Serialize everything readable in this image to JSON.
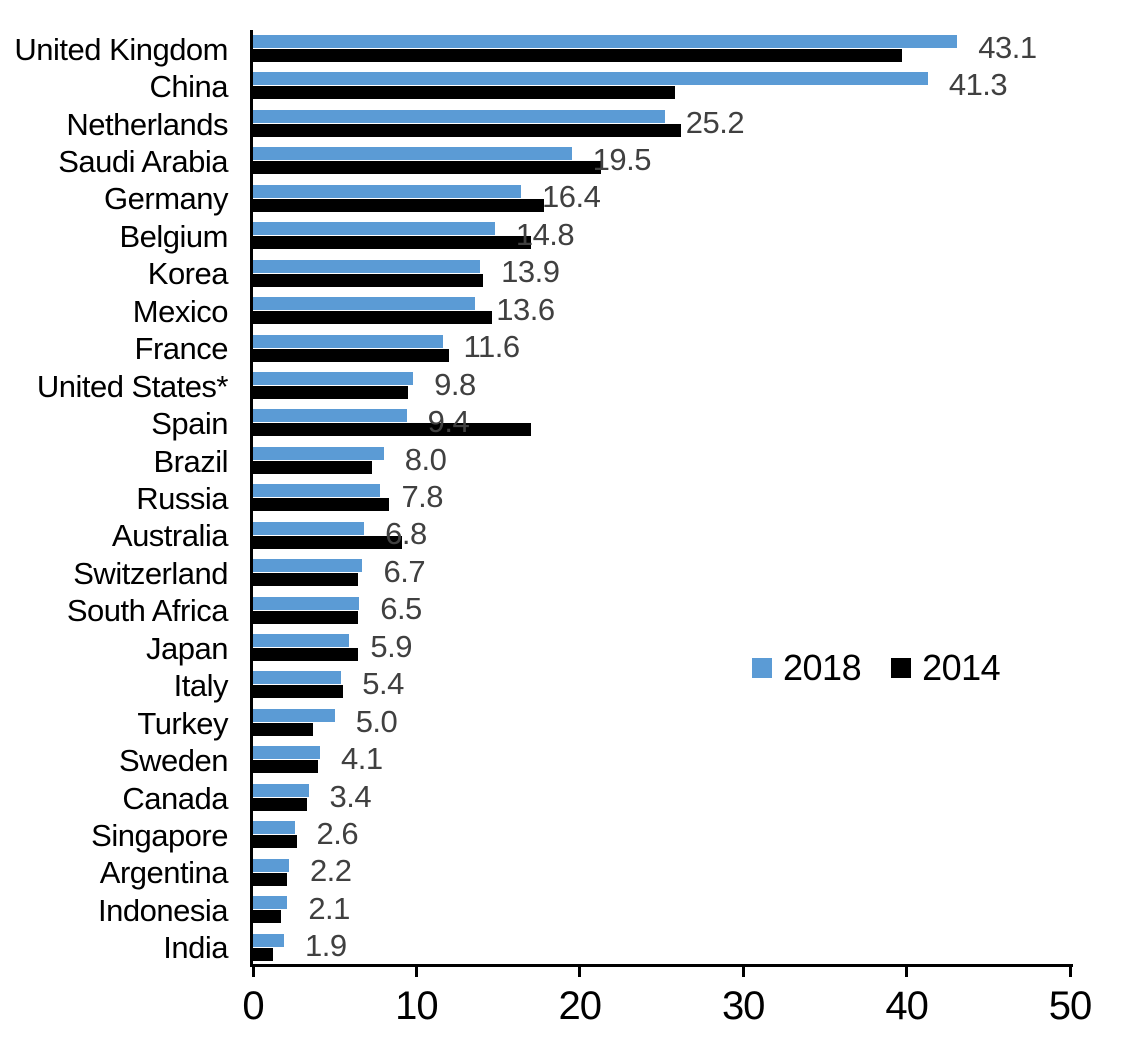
{
  "chart_data": {
    "type": "bar",
    "orientation": "horizontal",
    "title": "",
    "xlabel": "",
    "ylabel": "",
    "xlim": [
      0,
      50
    ],
    "x_ticks": [
      "0",
      "10",
      "20",
      "30",
      "40",
      "50"
    ],
    "grid": false,
    "categories": [
      "United Kingdom",
      "China",
      "Netherlands",
      "Saudi Arabia",
      "Germany",
      "Belgium",
      "Korea",
      "Mexico",
      "France",
      "United States*",
      "Spain",
      "Brazil",
      "Russia",
      "Australia",
      "Switzerland",
      "South Africa",
      "Japan",
      "Italy",
      "Turkey",
      "Sweden",
      "Canada",
      "Singapore",
      "Argentina",
      "Indonesia",
      "India"
    ],
    "series": [
      {
        "name": "2018",
        "color": "#5B9BD5",
        "values": [
          43.1,
          41.3,
          25.2,
          19.5,
          16.4,
          14.8,
          13.9,
          13.6,
          11.6,
          9.8,
          9.4,
          8.0,
          7.8,
          6.8,
          6.7,
          6.5,
          5.9,
          5.4,
          5.0,
          4.1,
          3.4,
          2.6,
          2.2,
          2.1,
          1.9
        ],
        "data_labels": [
          "43.1",
          "41.3",
          "25.2",
          "19.5",
          "16.4",
          "14.8",
          "13.9",
          "13.6",
          "11.6",
          "9.8",
          "9.4",
          "8.0",
          "7.8",
          "6.8",
          "6.7",
          "6.5",
          "5.9",
          "5.4",
          "5.0",
          "4.1",
          "3.4",
          "2.6",
          "2.2",
          "2.1",
          "1.9"
        ]
      },
      {
        "name": "2014",
        "color": "#000000",
        "values": [
          39.7,
          25.8,
          26.2,
          21.3,
          17.8,
          17.0,
          14.1,
          14.6,
          12.0,
          9.5,
          17.0,
          7.3,
          8.3,
          9.1,
          6.4,
          6.4,
          6.4,
          5.5,
          3.7,
          4.0,
          3.3,
          2.7,
          2.1,
          1.7,
          1.2
        ]
      }
    ],
    "legend": {
      "position": "middle-right",
      "entries": [
        {
          "label": "2018",
          "color": "#5B9BD5"
        },
        {
          "label": "2014",
          "color": "#000000"
        }
      ]
    },
    "value_label_color": "#404040",
    "axis_color": "#000000"
  }
}
